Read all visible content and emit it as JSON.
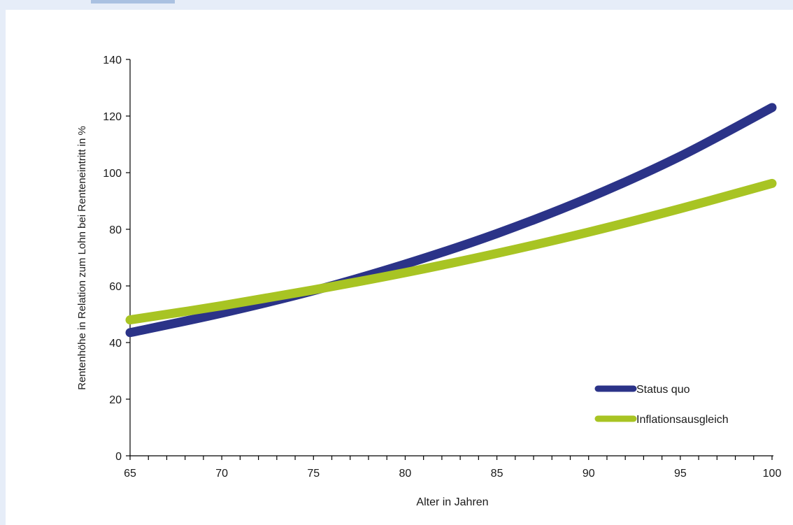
{
  "chart_data": {
    "type": "line",
    "title": "",
    "xlabel": "Alter in Jahren",
    "ylabel": "Rentenhöhe in Relation zum Lohn bei Renteneintritt in %",
    "xlim": [
      65,
      100
    ],
    "ylim": [
      0,
      140
    ],
    "x_ticks": [
      65,
      70,
      75,
      80,
      85,
      90,
      95,
      100
    ],
    "y_ticks": [
      0,
      20,
      40,
      60,
      80,
      100,
      120,
      140
    ],
    "grid": false,
    "legend_position": "bottom-right",
    "x": [
      65,
      70,
      75,
      80,
      85,
      90,
      95,
      100
    ],
    "series": [
      {
        "name": "Status quo",
        "color": "#2b3388",
        "values": [
          43.5,
          50.4,
          58.3,
          67.7,
          78.5,
          91.1,
          105.8,
          123.0
        ]
      },
      {
        "name": "Inflationsausgleich",
        "color": "#a8c423",
        "values": [
          48.0,
          53.0,
          58.6,
          64.7,
          71.5,
          79.0,
          87.3,
          96.2
        ]
      }
    ]
  }
}
